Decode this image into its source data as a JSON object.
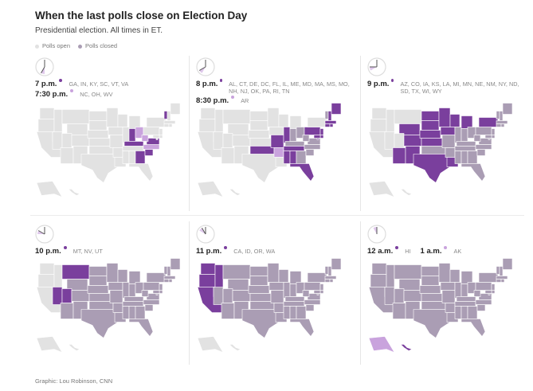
{
  "title": "When the last polls close on Election Day",
  "subtitle": "Presidential election. All times in ET.",
  "legend": {
    "open": "Polls open",
    "closed": "Polls closed"
  },
  "colors": {
    "open": "#e2e2e2",
    "closed": "#aa9db4",
    "current": "#7a3f9d",
    "half": "#c9a3dd",
    "clock": "#dddddd"
  },
  "chart_data": {
    "type": "map",
    "panels": [
      {
        "hour": 7,
        "rows": [
          {
            "time": "7 p.m.",
            "tone": "current",
            "states": "GA, IN, KY, SC, VT, VA"
          },
          {
            "time": "7:30 p.m.",
            "tone": "half",
            "states": "NC, OH, WV"
          }
        ],
        "current": [
          "GA",
          "IN",
          "KY",
          "SC",
          "VT",
          "VA"
        ],
        "half": [
          "NC",
          "OH",
          "WV"
        ]
      },
      {
        "hour": 8,
        "rows": [
          {
            "time": "8 p.m.",
            "tone": "current",
            "states": "AL, CT, DE, DC, FL, IL, ME, MD, MA, MS, MO, NH, NJ, OK, PA, RI, TN"
          },
          {
            "time": "8:30 p.m.",
            "tone": "half",
            "states": "AR"
          }
        ],
        "current": [
          "AL",
          "CT",
          "DE",
          "DC",
          "FL",
          "IL",
          "ME",
          "MD",
          "MA",
          "MS",
          "MO",
          "NH",
          "NJ",
          "OK",
          "PA",
          "RI",
          "TN"
        ],
        "half": [
          "AR"
        ]
      },
      {
        "hour": 9,
        "rows": [
          {
            "time": "9 p.m.",
            "tone": "current",
            "states": "AZ, CO, IA, KS, LA, MI, MN, NE, NM, NY, ND, SD, TX, WI, WY"
          }
        ],
        "current": [
          "AZ",
          "CO",
          "IA",
          "KS",
          "LA",
          "MI",
          "MN",
          "NE",
          "NM",
          "NY",
          "ND",
          "SD",
          "TX",
          "WI",
          "WY"
        ],
        "half": []
      },
      {
        "hour": 10,
        "rows": [
          {
            "time": "10 p.m.",
            "tone": "current",
            "states": "MT, NV, UT"
          }
        ],
        "current": [
          "MT",
          "NV",
          "UT"
        ],
        "half": []
      },
      {
        "hour": 11,
        "rows": [
          {
            "time": "11 p.m.",
            "tone": "current",
            "states": "CA, ID, OR, WA"
          }
        ],
        "current": [
          "CA",
          "ID",
          "OR",
          "WA"
        ],
        "half": []
      },
      {
        "hour": 12,
        "rows": [
          {
            "time": "12 a.m.",
            "tone": "current",
            "states": "HI"
          },
          {
            "time": "1 a.m.",
            "tone": "half",
            "states": "AK"
          }
        ],
        "current": [
          "HI"
        ],
        "half": [
          "AK"
        ]
      }
    ]
  },
  "footer": "Graphic: Lou Robinson, CNN"
}
